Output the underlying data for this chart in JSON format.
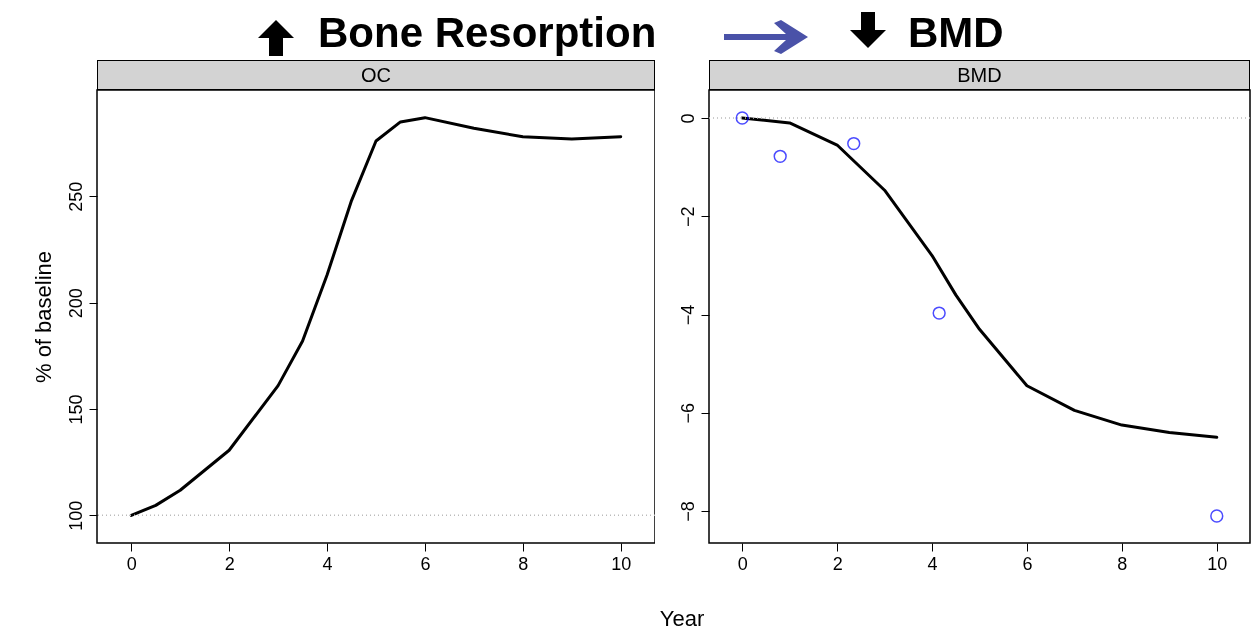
{
  "chart_data": [
    {
      "type": "line",
      "title": "OC",
      "ylabel": "% of baseline",
      "xlabel": "Year",
      "annotations": [
        "Bone Resorption"
      ],
      "series": [
        {
          "type": "line",
          "color": "#000000",
          "x": [
            0,
            0.5,
            1,
            2,
            3,
            3.5,
            4,
            4.5,
            5,
            5.5,
            6,
            7,
            8,
            9,
            10
          ],
          "values": [
            100,
            104.7,
            111.8,
            130.6,
            161,
            182,
            213,
            248,
            276,
            285,
            287,
            282,
            278,
            277,
            278
          ]
        }
      ],
      "xlim": [
        -0.7,
        10.7
      ],
      "ylim": [
        87,
        300
      ],
      "xticks": [
        0,
        2,
        4,
        6,
        8,
        10
      ],
      "yticks": [
        100,
        150,
        200,
        250
      ],
      "ref_lines": [
        {
          "axis": "y",
          "value": 100,
          "color": "#bbbbbb",
          "line_style": "dotted"
        }
      ],
      "grid": false
    },
    {
      "type": "line",
      "title": "BMD",
      "annotations": [
        "BMD"
      ],
      "series": [
        {
          "type": "line",
          "color": "#000000",
          "x": [
            0,
            1,
            2,
            3,
            4,
            4.5,
            5,
            6,
            7,
            8,
            9,
            10
          ],
          "values": [
            0,
            -0.1,
            -0.55,
            -1.47,
            -2.8,
            -3.6,
            -4.3,
            -5.45,
            -5.95,
            -6.25,
            -6.4,
            -6.5
          ]
        },
        {
          "type": "scatter",
          "color": "#0000ff",
          "marker": "circle",
          "x": [
            0,
            0.8,
            2.35,
            4.15,
            10
          ],
          "values": [
            0,
            -0.78,
            -0.52,
            -3.97,
            -8.1
          ]
        }
      ],
      "xlim": [
        -0.7,
        10.7
      ],
      "ylim": [
        -8.65,
        0.57
      ],
      "xticks": [
        0,
        2,
        4,
        6,
        8,
        10
      ],
      "yticks": [
        0,
        -2,
        -4,
        -6,
        -8
      ],
      "ref_lines": [
        {
          "axis": "y",
          "value": 0,
          "color": "#bbbbbb",
          "line_style": "dotted"
        }
      ],
      "grid": false
    }
  ]
}
